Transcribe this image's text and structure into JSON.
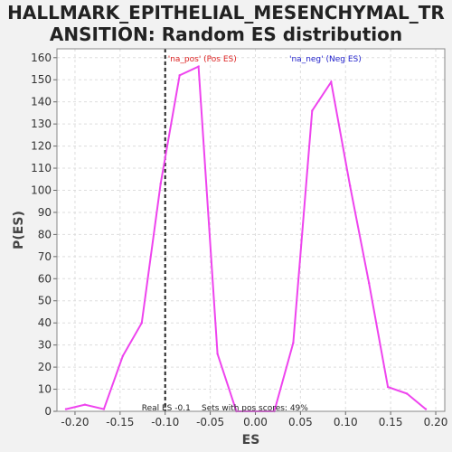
{
  "title_line1": "HALLMARK_EPITHELIAL_MESENCHYMAL_TR",
  "title_line2": "ANSITION: Random ES distribution",
  "colors": {
    "line": "#ee44ee",
    "pos_label": "#dd2222",
    "neg_label": "#2222cc",
    "real_es_line": "#222222",
    "grid": "#dddddd",
    "plot_bg": "#ffffff"
  },
  "chart_data": {
    "type": "line",
    "title": "HALLMARK_EPITHELIAL_MESENCHYMAL_TRANSITION: Random ES distribution",
    "xlabel": "ES",
    "ylabel": "P(ES)",
    "xlim": [
      -0.22,
      0.21
    ],
    "ylim": [
      0,
      164
    ],
    "xticks": [
      -0.2,
      -0.15,
      -0.1,
      -0.05,
      0.0,
      0.05,
      0.1,
      0.15,
      0.2
    ],
    "xtick_labels": [
      "-0.20",
      "-0.15",
      "-0.10",
      "-0.05",
      "0.00",
      "0.05",
      "0.10",
      "0.15",
      "0.20"
    ],
    "yticks": [
      0,
      10,
      20,
      30,
      40,
      50,
      60,
      70,
      80,
      90,
      100,
      110,
      120,
      130,
      140,
      150,
      160
    ],
    "grid": true,
    "series": [
      {
        "x": [
          -0.21,
          -0.189,
          -0.168,
          -0.147,
          -0.126,
          -0.105,
          -0.084,
          -0.063,
          -0.042,
          -0.021,
          0.0,
          0.021,
          0.042,
          0.063,
          0.084,
          0.105,
          0.126,
          0.147,
          0.168,
          0.189
        ],
        "y": [
          1,
          3,
          1,
          25,
          40,
          103,
          152,
          156,
          26,
          0,
          0,
          0,
          31,
          136,
          149,
          102,
          58,
          11,
          8,
          1
        ]
      }
    ],
    "real_es": -0.1,
    "annotations": {
      "pos_label": "'na_pos' (Pos ES)",
      "neg_label": "'na_neg' (Neg ES)",
      "real_es_label": "Real ES -0.1",
      "sets_label": "Sets with pos scores: 49%"
    }
  }
}
